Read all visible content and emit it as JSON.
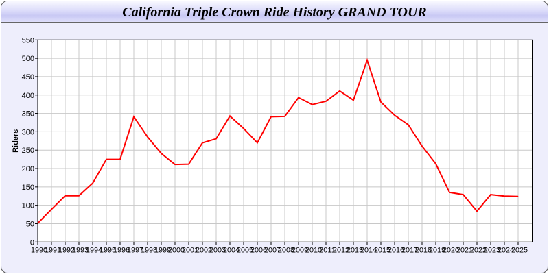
{
  "chart_data": {
    "type": "line",
    "title": "California Triple Crown Ride History GRAND TOUR",
    "xlabel": "",
    "ylabel": "Riders",
    "ylim": [
      0,
      550
    ],
    "yticks": [
      0,
      50,
      100,
      150,
      200,
      250,
      300,
      350,
      400,
      450,
      500,
      550
    ],
    "grid": true,
    "x": [
      1990,
      1991,
      1992,
      1993,
      1994,
      1995,
      1996,
      1997,
      1998,
      1999,
      2000,
      2001,
      2002,
      2003,
      2004,
      2005,
      2006,
      2007,
      2008,
      2009,
      2010,
      2011,
      2012,
      2013,
      2014,
      2015,
      2016,
      2017,
      2018,
      2019,
      2020,
      2021,
      2022,
      2023,
      2024,
      2025
    ],
    "series": [
      {
        "color": "#ff0000",
        "values": [
          51,
          89,
          126,
          126,
          160,
          225,
          225,
          341,
          286,
          241,
          211,
          212,
          270,
          281,
          343,
          309,
          270,
          341,
          342,
          393,
          374,
          383,
          411,
          386,
          495,
          381,
          345,
          319,
          261,
          213,
          135,
          129,
          84,
          129,
          125,
          124
        ]
      }
    ]
  }
}
